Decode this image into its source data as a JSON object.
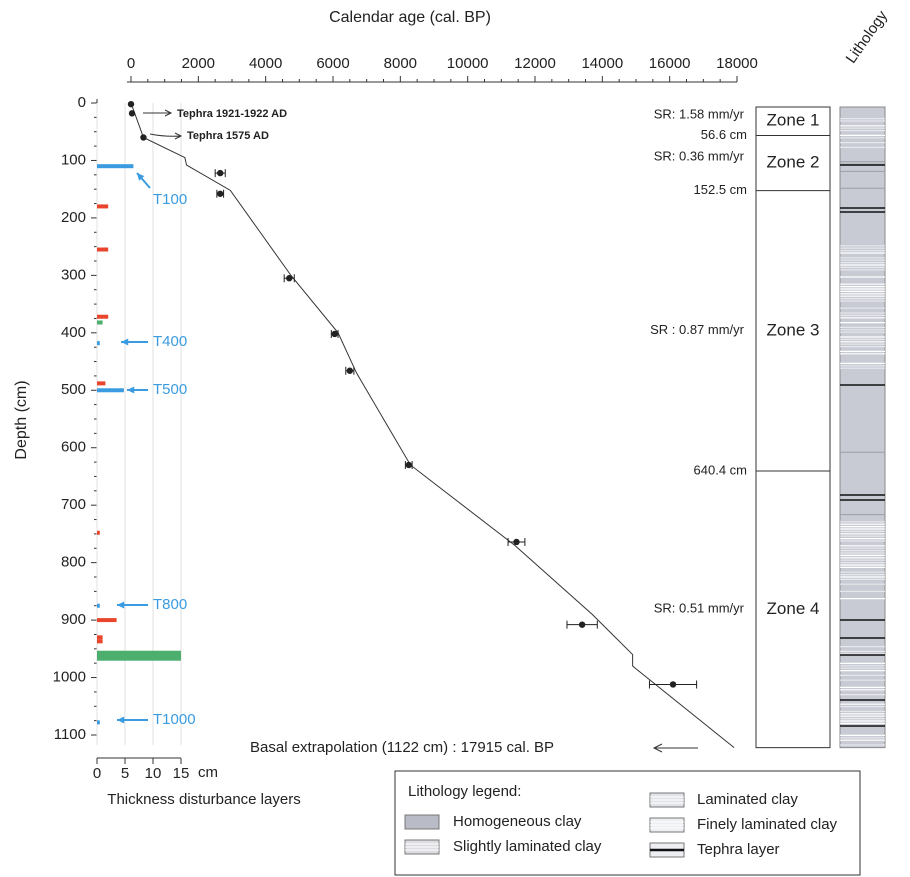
{
  "chart_data": {
    "type": "scatter",
    "title": "Calendar age (cal. BP)",
    "y_label": "Depth (cm)",
    "xlim": [
      0,
      18000
    ],
    "xticks": [
      0,
      2000,
      4000,
      6000,
      8000,
      10000,
      12000,
      14000,
      16000,
      18000
    ],
    "ylim": [
      0,
      1100
    ],
    "yticks": [
      0,
      100,
      200,
      300,
      400,
      500,
      600,
      700,
      800,
      900,
      1000,
      1100
    ],
    "dates": {
      "age": [
        0,
        30,
        370,
        2650,
        2650,
        4700,
        6050,
        6500,
        8250,
        11450,
        13400,
        16100
      ],
      "depth": [
        2,
        18,
        60,
        122,
        158,
        305,
        402,
        466,
        630,
        764,
        908,
        1012
      ],
      "error": [
        0,
        0,
        0,
        150,
        100,
        150,
        100,
        120,
        100,
        250,
        450,
        700
      ],
      "color": "#222222"
    },
    "model": {
      "age": [
        0,
        370,
        1600,
        1650,
        2950,
        4750,
        6150,
        6700,
        8300,
        11400,
        13700,
        14900,
        14900,
        17915
      ],
      "depth": [
        0,
        60,
        95,
        108,
        152,
        300,
        400,
        470,
        630,
        770,
        890,
        960,
        980,
        1122
      ],
      "color": "#333333"
    },
    "annotations": [
      "Tephra 1921-1922 AD",
      "Tephra 1575 AD"
    ],
    "basal_label": "Basal extrapolation (1122 cm) : 17915 cal. BP",
    "thickness_axis": {
      "label": "Thickness disturbance layers",
      "unit": "cm",
      "xlim": [
        0,
        15
      ],
      "xticks": [
        0,
        5,
        10,
        15
      ]
    },
    "disturbance_layers": [
      {
        "color": "#3a9be0",
        "depth": [
          110,
          418,
          500,
          875,
          1078
        ],
        "thickness": [
          6.5,
          0.5,
          4.8,
          0.5,
          0.5
        ]
      },
      {
        "color": "#e8452c",
        "depth": [
          180,
          255,
          372,
          488,
          748,
          900,
          930,
          937
        ],
        "thickness": [
          2,
          2,
          2,
          1.5,
          0.5,
          3.5,
          1,
          1
        ]
      },
      {
        "color": "#4caf6e",
        "depth": [
          382,
          962
        ],
        "thickness": [
          1,
          15
        ]
      }
    ],
    "tephra_markers": {
      "color": "#3a9be0",
      "labels": [
        "T100",
        "T400",
        "T500",
        "T800",
        "T1000"
      ]
    },
    "zones": [
      "Zone 1",
      "Zone 2",
      "Zone 3",
      "Zone 4"
    ],
    "zone_rates": [
      "SR: 1.58 mm/yr",
      "SR: 0.36 mm/yr",
      "SR : 0.87 mm/yr",
      "SR: 0.51 mm/yr"
    ],
    "zone_boundaries": [
      {
        "value": 56.6,
        "label": "56.6 cm"
      },
      {
        "value": 152.5,
        "label": "152.5 cm"
      },
      {
        "value": 640.4,
        "label": "640.4 cm"
      }
    ],
    "lithology_title": "Lithology",
    "legend": {
      "title": "Lithology legend:",
      "items": [
        "Homogeneous clay",
        "Slightly laminated clay",
        "Laminated clay",
        "Finely laminated clay",
        "Tephra layer"
      ]
    }
  }
}
